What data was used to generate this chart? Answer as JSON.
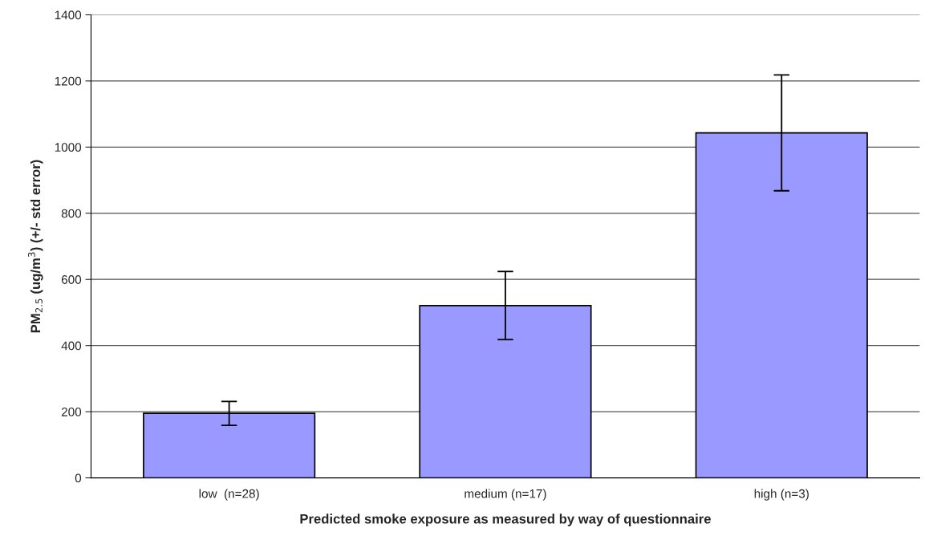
{
  "chart_data": {
    "type": "bar",
    "categories": [
      "low  (n=28)",
      "medium (n=17)",
      "high (n=3)"
    ],
    "values": [
      195,
      521,
      1043
    ],
    "errors": [
      36,
      103,
      175
    ],
    "color": "#9999ff",
    "xlabel": "Predicted smoke exposure as measured by way of questionnaire",
    "ylabel": "PM$_{2.5}$ (ug/m$^{3}$) (+/- std error)",
    "ylim": [
      0,
      1400
    ],
    "yticks": [
      0,
      200,
      400,
      600,
      800,
      1000,
      1200,
      1400
    ],
    "grid": "y",
    "legend": false
  }
}
